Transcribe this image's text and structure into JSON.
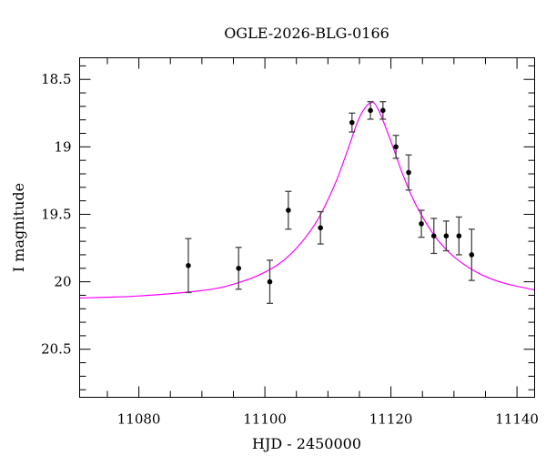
{
  "chart_data": {
    "type": "scatter",
    "title": "OGLE-2026-BLG-0166",
    "xlabel": "HJD - 2450000",
    "ylabel": "I magnitude",
    "xlim": [
      11070.6,
      11142.8
    ],
    "ylim": [
      20.856,
      18.34
    ],
    "y_inverted": true,
    "grid": false,
    "x_ticks": [
      11080,
      11100,
      11120,
      11140
    ],
    "x_tick_labels": [
      "11080",
      "11100",
      "11120",
      "11140"
    ],
    "x_minor_step": 5,
    "y_ticks": [
      18.5,
      19,
      19.5,
      20,
      20.5
    ],
    "y_tick_labels": [
      "18.5",
      "19",
      "19.5",
      "20",
      "20.5"
    ],
    "y_minor_step": 0.1,
    "series": [
      {
        "kind": "points-with-errorbars",
        "color": "#000000",
        "x": [
          11087.85,
          11095.83,
          11100.78,
          11103.72,
          11108.82,
          11113.82,
          11116.75,
          11118.73,
          11120.79,
          11122.81,
          11124.83,
          11126.81,
          11128.77,
          11130.79,
          11132.81
        ],
        "y": [
          19.88,
          19.9,
          20.0,
          19.47,
          19.6,
          18.82,
          18.73,
          18.73,
          19.0,
          19.19,
          19.57,
          19.66,
          19.66,
          19.66,
          19.8
        ],
        "yerr": [
          0.2,
          0.155,
          0.16,
          0.14,
          0.12,
          0.07,
          0.065,
          0.065,
          0.085,
          0.13,
          0.1,
          0.13,
          0.11,
          0.14,
          0.19
        ]
      },
      {
        "kind": "model-curve",
        "color": "#ff00ff",
        "x": [
          11070.6,
          11080,
          11090,
          11095,
          11100,
          11104,
          11108,
          11111,
          11113,
          11115,
          11116.8,
          11118,
          11120,
          11122,
          11124,
          11127,
          11130,
          11134,
          11138,
          11142.8
        ],
        "y": [
          20.12,
          20.105,
          20.065,
          20.018,
          19.929,
          19.799,
          19.569,
          19.289,
          19.042,
          18.783,
          18.672,
          18.724,
          18.96,
          19.219,
          19.433,
          19.664,
          19.815,
          19.939,
          20.011,
          20.06
        ]
      }
    ]
  }
}
